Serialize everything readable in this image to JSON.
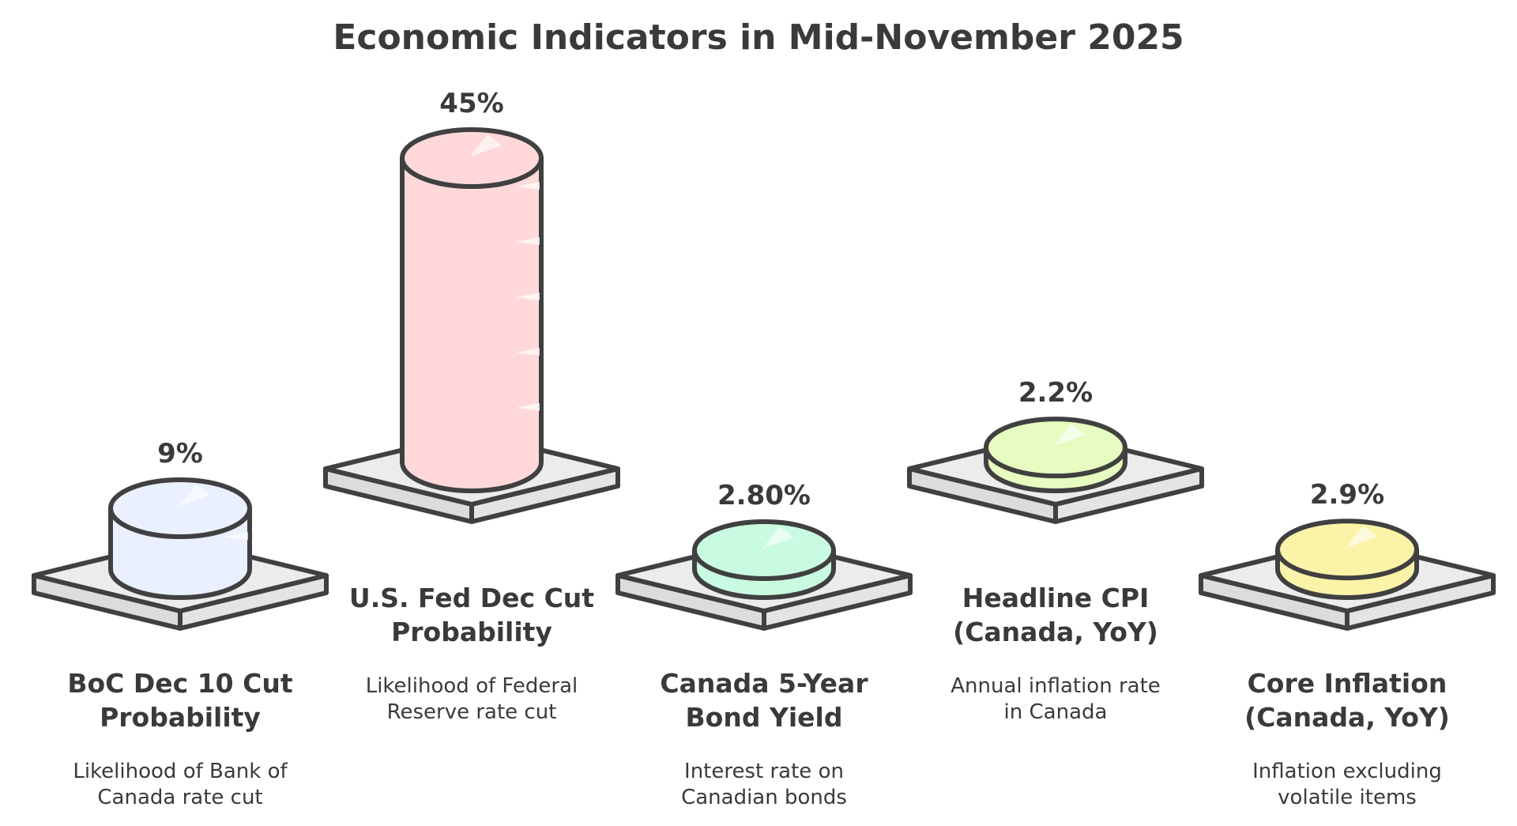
{
  "chart_data": {
    "type": "bar",
    "title": "Economic Indicators in Mid-November 2025",
    "categories": [
      {
        "label": [
          "BoC Dec 10 Cut",
          "Probability"
        ],
        "description": [
          "Likelihood of Bank of",
          "Canada rate cut"
        ]
      },
      {
        "label": [
          "U.S. Fed Dec Cut",
          "Probability"
        ],
        "description": [
          "Likelihood of Federal",
          "Reserve rate cut"
        ]
      },
      {
        "label": [
          "Canada 5-Year",
          "Bond Yield"
        ],
        "description": [
          "Interest rate on",
          "Canadian bonds"
        ]
      },
      {
        "label": [
          "Headline CPI",
          "(Canada, YoY)"
        ],
        "description": [
          "Annual inflation rate",
          "in Canada"
        ]
      },
      {
        "label": [
          "Core Inflation",
          "(Canada, YoY)"
        ],
        "description": [
          "Inflation excluding",
          "volatile items"
        ]
      }
    ],
    "values": [
      9,
      45,
      2.8,
      2.2,
      2.9
    ],
    "value_labels": [
      "9%",
      "45%",
      "2.80%",
      "2.2%",
      "2.9%"
    ],
    "colors": [
      "#eaf0ff",
      "#ffd9d9",
      "#c9fbe2",
      "#e6fcc0",
      "#fbf3a8"
    ],
    "platform_color": "#ececec",
    "outline_color": "#404040"
  }
}
